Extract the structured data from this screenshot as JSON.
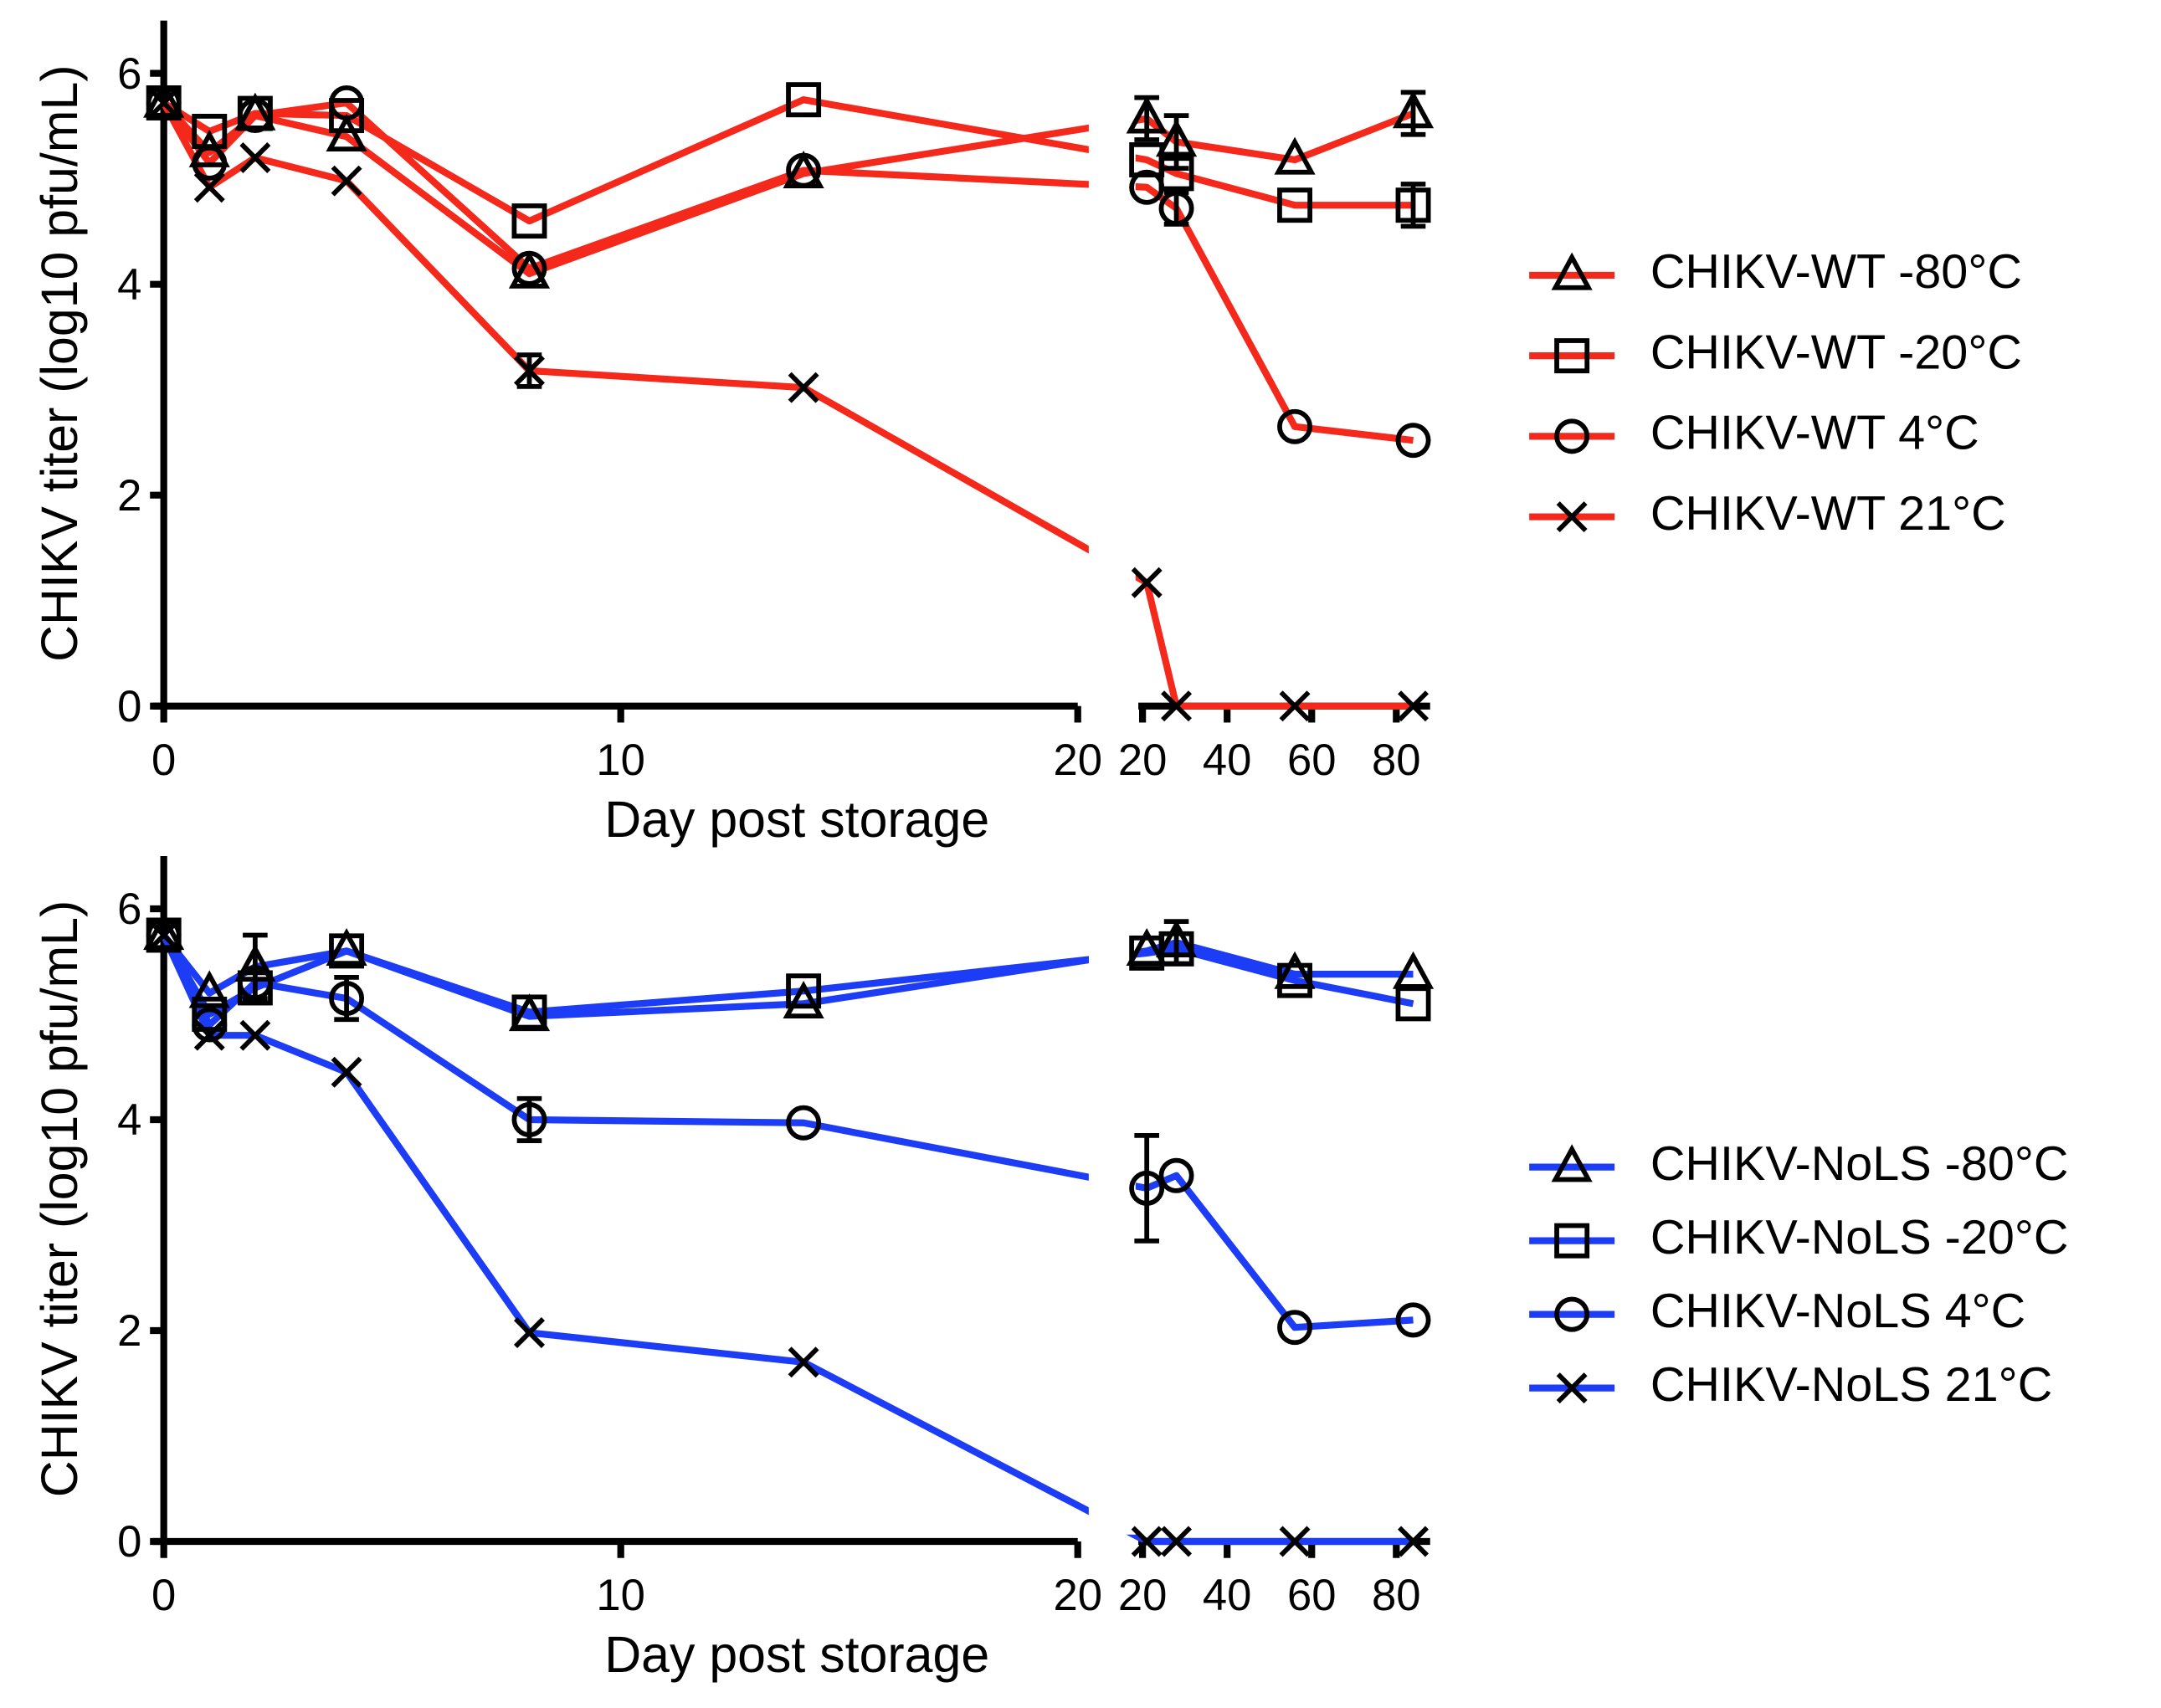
{
  "chart_data": [
    {
      "type": "line",
      "xlabel": "Day post storage",
      "ylabel": "CHIKV titer (log10 pfu/mL)",
      "x": [
        0,
        1,
        2,
        4,
        8,
        14,
        21,
        28,
        56,
        84
      ],
      "xsegments": [
        {
          "xlim": [
            0,
            20
          ],
          "xticks": [
            0,
            10,
            20
          ]
        },
        {
          "xlim": [
            19,
            88
          ],
          "xticks": [
            20,
            40,
            60,
            80
          ]
        }
      ],
      "ylim": [
        0,
        6.5
      ],
      "yticks": [
        0,
        2,
        4,
        6
      ],
      "legend": "right",
      "series": [
        {
          "name": "CHIKV-WT -80°C",
          "color": "#f5281c",
          "marker": "triangle",
          "values": [
            5.72,
            5.25,
            5.6,
            5.4,
            4.1,
            5.05,
            5.57,
            5.35,
            5.18,
            5.62
          ],
          "errors": [
            null,
            null,
            null,
            null,
            null,
            null,
            0.2,
            0.25,
            null,
            0.2
          ]
        },
        {
          "name": "CHIKV-WT -20°C",
          "color": "#f5281c",
          "marker": "square",
          "values": [
            5.72,
            5.45,
            5.62,
            5.6,
            4.6,
            5.75,
            5.18,
            5.05,
            4.75,
            4.75
          ],
          "errors": [
            null,
            null,
            null,
            null,
            null,
            null,
            null,
            null,
            null,
            0.2
          ]
        },
        {
          "name": "CHIKV-WT 4°C",
          "color": "#f5281c",
          "marker": "circle",
          "values": [
            5.72,
            5.15,
            5.6,
            5.72,
            4.15,
            5.08,
            4.92,
            4.72,
            2.65,
            2.52
          ],
          "errors": [
            null,
            null,
            null,
            null,
            null,
            null,
            null,
            0.15,
            null,
            null
          ]
        },
        {
          "name": "CHIKV-WT 21°C",
          "color": "#f5281c",
          "marker": "x",
          "values": [
            5.72,
            4.92,
            5.2,
            4.98,
            3.18,
            3.02,
            1.17,
            0,
            0,
            0
          ],
          "errors": [
            null,
            null,
            null,
            null,
            0.15,
            null,
            null,
            null,
            null,
            null
          ]
        }
      ]
    },
    {
      "type": "line",
      "xlabel": "Day post storage",
      "ylabel": "CHIKV titer (log10 pfu/mL)",
      "x": [
        0,
        1,
        2,
        4,
        8,
        14,
        21,
        28,
        56,
        84
      ],
      "xsegments": [
        {
          "xlim": [
            0,
            20
          ],
          "xticks": [
            0,
            10,
            20
          ]
        },
        {
          "xlim": [
            19,
            88
          ],
          "xticks": [
            20,
            40,
            60,
            80
          ]
        }
      ],
      "ylim": [
        0,
        6.5
      ],
      "yticks": [
        0,
        2,
        4,
        6
      ],
      "legend": "right",
      "series": [
        {
          "name": "CHIKV-NoLS -80°C",
          "color": "#1c3cf5",
          "marker": "triangle",
          "values": [
            5.75,
            5.2,
            5.45,
            5.6,
            4.98,
            5.1,
            5.6,
            5.68,
            5.38,
            5.38
          ],
          "errors": [
            null,
            null,
            0.3,
            null,
            null,
            null,
            null,
            0.2,
            null,
            null
          ]
        },
        {
          "name": "CHIKV-NoLS -20°C",
          "color": "#1c3cf5",
          "marker": "square",
          "values": [
            5.75,
            5.0,
            5.25,
            5.6,
            5.02,
            5.22,
            5.58,
            5.62,
            5.32,
            5.1
          ],
          "errors": [
            null,
            null,
            null,
            null,
            null,
            null,
            null,
            null,
            null,
            null
          ]
        },
        {
          "name": "CHIKV-NoLS 4°C",
          "color": "#1c3cf5",
          "marker": "circle",
          "values": [
            5.75,
            4.9,
            5.3,
            5.15,
            4.0,
            3.97,
            3.35,
            3.47,
            2.03,
            2.1
          ],
          "errors": [
            null,
            null,
            null,
            0.2,
            0.2,
            null,
            0.5,
            null,
            null,
            null
          ]
        },
        {
          "name": "CHIKV-NoLS 21°C",
          "color": "#1c3cf5",
          "marker": "x",
          "values": [
            5.75,
            4.8,
            4.8,
            4.45,
            1.98,
            1.7,
            0,
            0,
            0,
            0
          ],
          "errors": [
            null,
            null,
            null,
            null,
            null,
            null,
            null,
            null,
            null,
            null
          ]
        }
      ]
    }
  ]
}
